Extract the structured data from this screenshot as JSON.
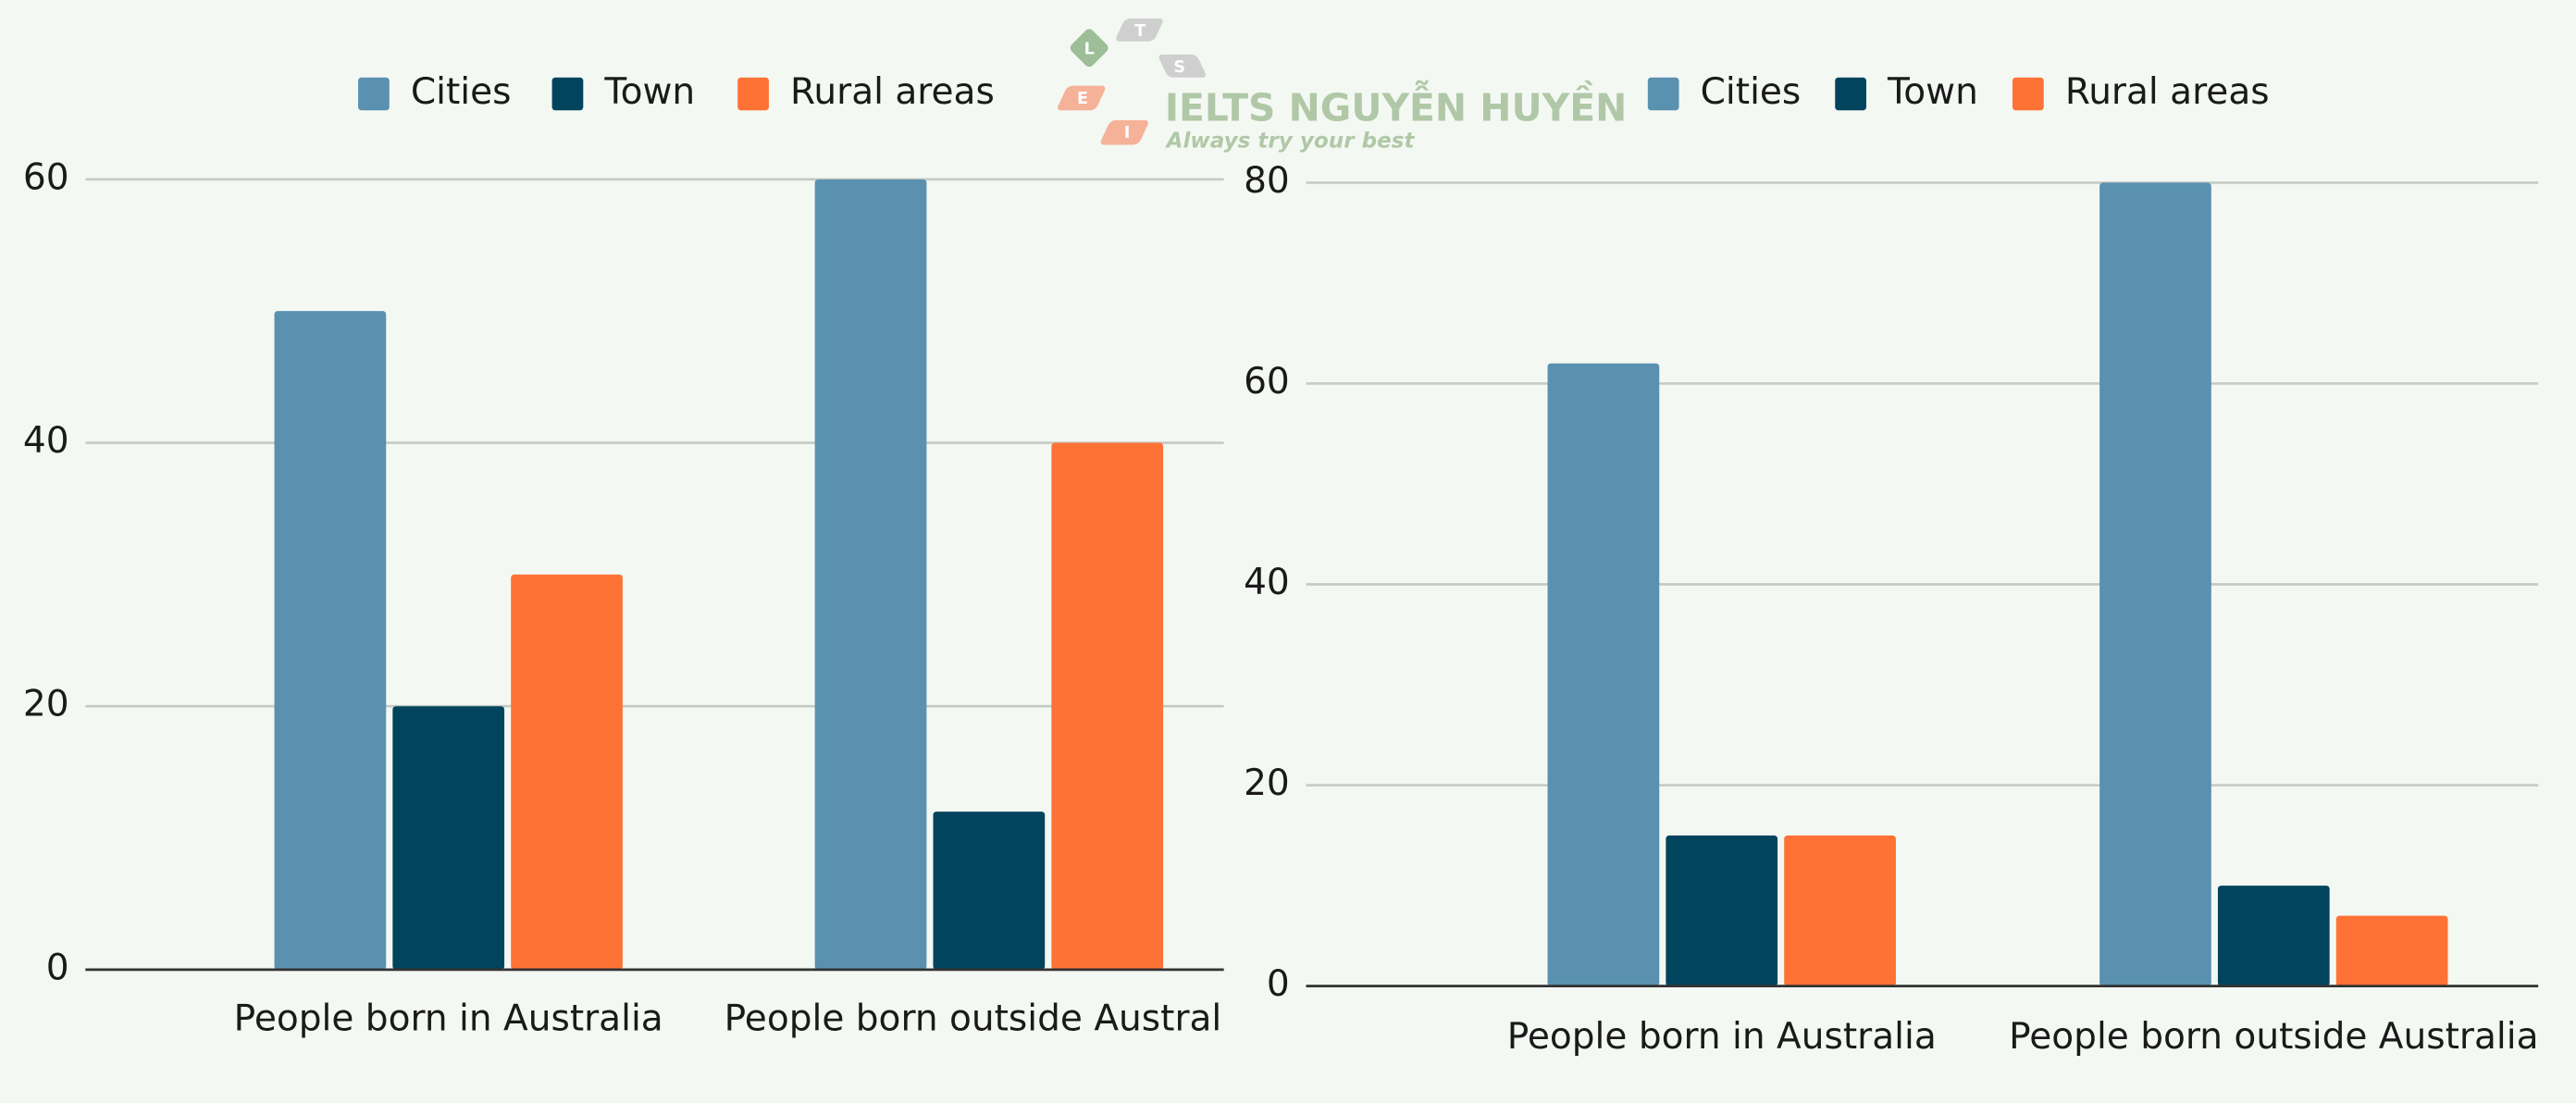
{
  "chart_data": [
    {
      "type": "bar",
      "categories": [
        "People born in Australia",
        "People born outside Australia"
      ],
      "series": [
        {
          "name": "Cities",
          "color": "#5a91b0",
          "values": [
            50,
            60
          ]
        },
        {
          "name": "Town",
          "color": "#02445e",
          "values": [
            20,
            12
          ]
        },
        {
          "name": "Rural areas",
          "color": "#ff7235",
          "values": [
            30,
            40
          ]
        }
      ],
      "ylim": [
        0,
        60
      ],
      "yticks": [
        0,
        20,
        40,
        60
      ],
      "grid": true,
      "legend": "top"
    },
    {
      "type": "bar",
      "categories": [
        "People born in Australia",
        "People born outside Australia"
      ],
      "series": [
        {
          "name": "Cities",
          "color": "#5a91b0",
          "values": [
            62,
            80
          ]
        },
        {
          "name": "Town",
          "color": "#02445e",
          "values": [
            15,
            10
          ]
        },
        {
          "name": "Rural areas",
          "color": "#ff7235",
          "values": [
            15,
            7
          ]
        }
      ],
      "ylim": [
        0,
        80
      ],
      "yticks": [
        0,
        20,
        40,
        60,
        80
      ],
      "grid": true,
      "legend": "top"
    }
  ],
  "watermark": {
    "logo_letters": [
      "L",
      "T",
      "S",
      "E",
      "I"
    ],
    "brand": "IELTS NGUYỄN HUYỀN",
    "slogan": "Always try your best"
  }
}
